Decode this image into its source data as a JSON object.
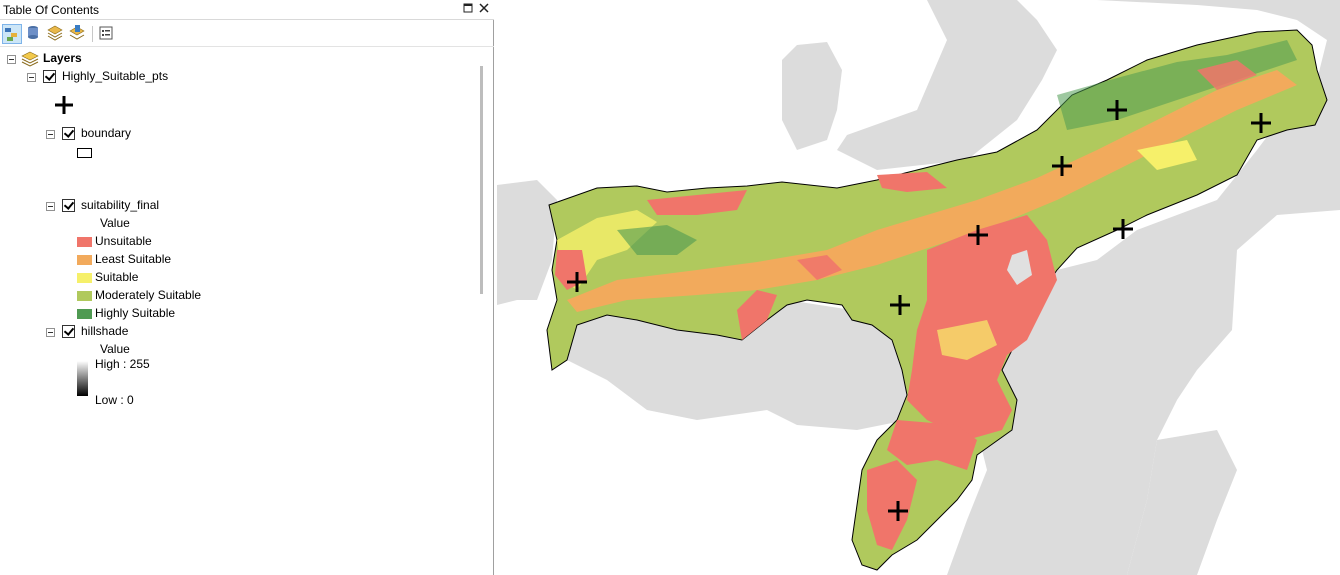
{
  "toc": {
    "title": "Table Of Contents",
    "pin_icon": "pin-icon",
    "close_icon": "close-icon",
    "toolbar": [
      "list-by-drawing-order-icon",
      "list-by-source-icon",
      "list-by-visibility-icon",
      "list-by-selection-icon",
      "options-icon"
    ],
    "root_label": "Layers",
    "layers": [
      {
        "name": "Highly_Suitable_pts",
        "checked": true
      },
      {
        "name": "boundary",
        "checked": true
      },
      {
        "name": "suitability_final",
        "checked": true,
        "value_heading": "Value",
        "classes": [
          {
            "label": "Unsuitable",
            "color": "#f0756a"
          },
          {
            "label": "Least Suitable",
            "color": "#f2aa5c"
          },
          {
            "label": "Suitable",
            "color": "#f6f06a"
          },
          {
            "label": "Moderately Suitable",
            "color": "#b0c95d"
          },
          {
            "label": "Highly Suitable",
            "color": "#4f9a52"
          }
        ]
      },
      {
        "name": "hillshade",
        "checked": true,
        "value_heading": "Value",
        "high_label": "High : 255",
        "low_label": "Low : 0"
      }
    ]
  },
  "map": {
    "background_land_color": "#dcdcdc",
    "point_marker": "plus-marker"
  }
}
